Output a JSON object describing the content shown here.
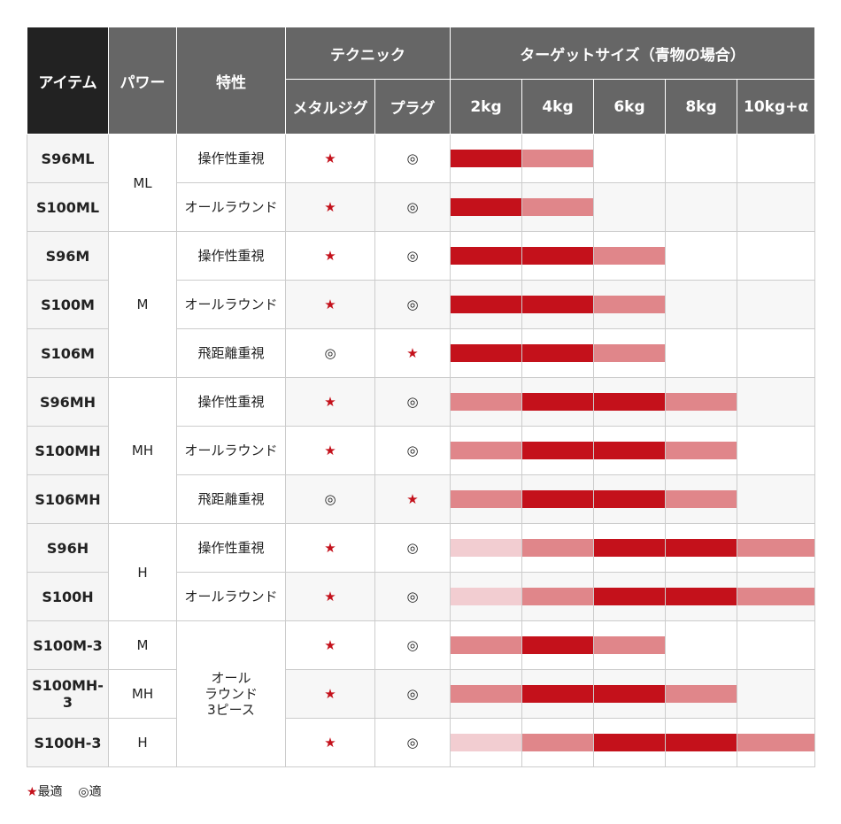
{
  "header": {
    "item": "アイテム",
    "power": "パワー",
    "feature": "特性",
    "technique": "テクニック",
    "target": "ターゲットサイズ（青物の場合）",
    "metal": "メタルジグ",
    "plug": "プラグ",
    "sizes": [
      "2kg",
      "4kg",
      "6kg",
      "8kg",
      "10kg+α"
    ]
  },
  "colors": {
    "level1": "#f2cdd1",
    "level2": "#e0868a",
    "level3": "#c4111b",
    "header_dark": "#222222",
    "header": "#666666"
  },
  "symbols": {
    "best": "★",
    "good": "◎"
  },
  "powers": [
    {
      "label": "ML",
      "rows": 2
    },
    {
      "label": "M",
      "rows": 3
    },
    {
      "label": "MH",
      "rows": 3
    },
    {
      "label": "H",
      "rows": 2
    },
    {
      "label": "M",
      "rows": 1
    },
    {
      "label": "MH",
      "rows": 1
    },
    {
      "label": "H",
      "rows": 1
    }
  ],
  "features": [
    {
      "label": "操作性重視",
      "rows": 1
    },
    {
      "label": "オールラウンド",
      "rows": 1
    },
    {
      "label": "操作性重視",
      "rows": 1
    },
    {
      "label": "オールラウンド",
      "rows": 1
    },
    {
      "label": "飛距離重視",
      "rows": 1
    },
    {
      "label": "操作性重視",
      "rows": 1
    },
    {
      "label": "オールラウンド",
      "rows": 1
    },
    {
      "label": "飛距離重視",
      "rows": 1
    },
    {
      "label": "操作性重視",
      "rows": 1
    },
    {
      "label": "オールラウンド",
      "rows": 1
    },
    {
      "label": "オール\nラウンド\n3ピース",
      "rows": 3
    }
  ],
  "rows": [
    {
      "item": "S96ML",
      "metal": "★",
      "plug": "◎",
      "levels": [
        3,
        2,
        0,
        0,
        0
      ]
    },
    {
      "item": "S100ML",
      "metal": "★",
      "plug": "◎",
      "levels": [
        3,
        2,
        0,
        0,
        0
      ]
    },
    {
      "item": "S96M",
      "metal": "★",
      "plug": "◎",
      "levels": [
        3,
        3,
        2,
        0,
        0
      ]
    },
    {
      "item": "S100M",
      "metal": "★",
      "plug": "◎",
      "levels": [
        3,
        3,
        2,
        0,
        0
      ]
    },
    {
      "item": "S106M",
      "metal": "◎",
      "plug": "★",
      "levels": [
        3,
        3,
        2,
        0,
        0
      ]
    },
    {
      "item": "S96MH",
      "metal": "★",
      "plug": "◎",
      "levels": [
        2,
        3,
        3,
        2,
        0
      ]
    },
    {
      "item": "S100MH",
      "metal": "★",
      "plug": "◎",
      "levels": [
        2,
        3,
        3,
        2,
        0
      ]
    },
    {
      "item": "S106MH",
      "metal": "◎",
      "plug": "★",
      "levels": [
        2,
        3,
        3,
        2,
        0
      ]
    },
    {
      "item": "S96H",
      "metal": "★",
      "plug": "◎",
      "levels": [
        1,
        2,
        3,
        3,
        2
      ]
    },
    {
      "item": "S100H",
      "metal": "★",
      "plug": "◎",
      "levels": [
        1,
        2,
        3,
        3,
        2
      ]
    },
    {
      "item": "S100M-3",
      "metal": "★",
      "plug": "◎",
      "levels": [
        2,
        3,
        2,
        0,
        0
      ]
    },
    {
      "item": "S100MH-3",
      "metal": "★",
      "plug": "◎",
      "levels": [
        2,
        3,
        3,
        2,
        0
      ]
    },
    {
      "item": "S100H-3",
      "metal": "★",
      "plug": "◎",
      "levels": [
        1,
        2,
        3,
        3,
        2
      ]
    }
  ],
  "legend": {
    "best": "最適",
    "good": "適"
  }
}
